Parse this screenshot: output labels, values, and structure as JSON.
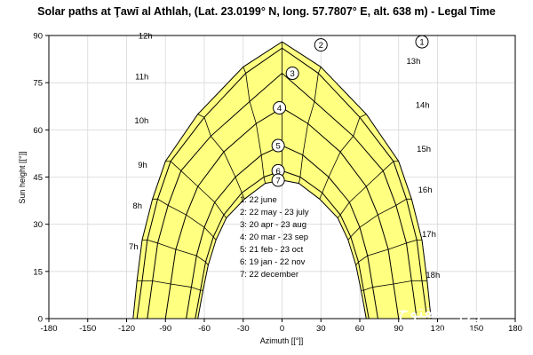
{
  "chart_data": {
    "type": "line",
    "title": "Solar paths at Ţawī al Athlah, (Lat. 23.0199° N, long. 57.7807° E, alt. 638 m) - Legal Time",
    "xlabel": "Azimuth [[°]]",
    "ylabel": "Sun height [[°]]",
    "xlim": [
      -180,
      180
    ],
    "ylim": [
      0,
      90
    ],
    "x_ticks": [
      "-180",
      "-150",
      "-120",
      "-90",
      "-60",
      "-30",
      "0",
      "30",
      "60",
      "90",
      "120",
      "150",
      "180"
    ],
    "y_ticks": [
      "0",
      "15",
      "30",
      "45",
      "60",
      "75",
      "90"
    ],
    "grid": true,
    "fill_color": "#ffff80",
    "line_color": "#000000",
    "series": [
      {
        "marker": "1",
        "x": [
          -115,
          -112,
          -108,
          -100,
          -90,
          -65,
          -30,
          0,
          30,
          65,
          90,
          100,
          108,
          112,
          115
        ],
        "y": [
          0,
          12,
          25,
          38,
          50,
          65,
          80,
          88,
          80,
          65,
          50,
          38,
          25,
          12,
          0
        ]
      },
      {
        "marker": "2",
        "x": [
          -112,
          -108,
          -104,
          -96,
          -86,
          -60,
          -28,
          0,
          28,
          60,
          86,
          96,
          104,
          108,
          112
        ],
        "y": [
          0,
          12,
          25,
          38,
          50,
          64,
          78,
          86,
          78,
          64,
          50,
          38,
          25,
          12,
          0
        ]
      },
      {
        "marker": "3",
        "x": [
          -104,
          -100,
          -96,
          -88,
          -78,
          -55,
          -25,
          0,
          25,
          55,
          78,
          88,
          96,
          100,
          104
        ],
        "y": [
          0,
          12,
          24,
          36,
          47,
          58,
          69,
          78,
          69,
          58,
          47,
          36,
          24,
          12,
          0
        ]
      },
      {
        "marker": "4",
        "x": [
          -90,
          -86,
          -82,
          -74,
          -65,
          -45,
          -20,
          0,
          20,
          45,
          65,
          74,
          82,
          86,
          90
        ],
        "y": [
          0,
          11,
          22,
          33,
          42,
          53,
          62,
          67,
          62,
          53,
          42,
          33,
          22,
          11,
          0
        ]
      },
      {
        "marker": "5",
        "x": [
          -74,
          -70,
          -66,
          -60,
          -52,
          -36,
          -16,
          0,
          16,
          36,
          52,
          60,
          66,
          70,
          74
        ],
        "y": [
          0,
          10,
          20,
          29,
          37,
          45,
          52,
          55,
          52,
          45,
          37,
          29,
          20,
          10,
          0
        ]
      },
      {
        "marker": "6",
        "x": [
          -67,
          -63,
          -59,
          -53,
          -45,
          -31,
          -14,
          0,
          14,
          31,
          45,
          53,
          59,
          63,
          67
        ],
        "y": [
          0,
          9,
          18,
          26,
          33,
          40,
          45,
          47,
          45,
          40,
          33,
          26,
          18,
          9,
          0
        ]
      },
      {
        "marker": "7",
        "x": [
          -65,
          -61,
          -57,
          -51,
          -43,
          -29,
          -13,
          0,
          13,
          29,
          43,
          51,
          57,
          61,
          65
        ],
        "y": [
          0,
          9,
          17,
          25,
          32,
          38,
          43,
          44,
          43,
          38,
          32,
          25,
          17,
          9,
          0
        ]
      }
    ],
    "hour_labels": [
      {
        "text": "7h",
        "x": -111,
        "y": 22
      },
      {
        "text": "8h",
        "x": -108,
        "y": 35
      },
      {
        "text": "9h",
        "x": -104,
        "y": 48
      },
      {
        "text": "10h",
        "x": -103,
        "y": 62
      },
      {
        "text": "11h",
        "x": -103,
        "y": 76
      },
      {
        "text": "12h",
        "x": -100,
        "y": 89
      },
      {
        "text": "13h",
        "x": 96,
        "y": 81
      },
      {
        "text": "14h",
        "x": 103,
        "y": 67
      },
      {
        "text": "15h",
        "x": 104,
        "y": 53
      },
      {
        "text": "16h",
        "x": 105,
        "y": 40
      },
      {
        "text": "17h",
        "x": 108,
        "y": 26
      },
      {
        "text": "18h",
        "x": 111,
        "y": 13
      }
    ],
    "legend": [
      "1: 22 june",
      "2: 22 may - 23 july",
      "3: 20 apr - 23 aug",
      "4: 20 mar - 23 sep",
      "5: 21 feb - 23 oct",
      "6: 19 jan - 22 nov",
      "7: 22 december"
    ],
    "markers": [
      {
        "text": "1",
        "x": 108,
        "y": 88
      },
      {
        "text": "2",
        "x": 30,
        "y": 87
      },
      {
        "text": "3",
        "x": 8,
        "y": 78
      },
      {
        "text": "4",
        "x": -2,
        "y": 67
      },
      {
        "text": "5",
        "x": -3,
        "y": 55
      },
      {
        "text": "6",
        "x": -3,
        "y": 47
      },
      {
        "text": "7",
        "x": -3,
        "y": 44
      }
    ]
  },
  "watermark": {
    "text": "السوق المفتوح",
    "subtext": "opensooq.com"
  }
}
